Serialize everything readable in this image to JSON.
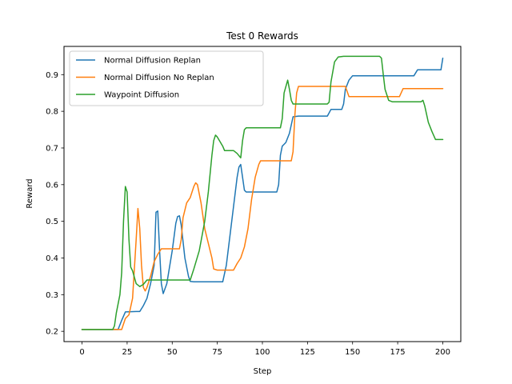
{
  "chart_data": {
    "type": "line",
    "title": "Test 0 Rewards",
    "xlabel": "Step",
    "ylabel": "Reward",
    "xlim": [
      -10,
      210
    ],
    "ylim": [
      0.172,
      0.977
    ],
    "xticks": [
      0,
      25,
      50,
      75,
      100,
      125,
      150,
      175,
      200
    ],
    "yticks": [
      0.2,
      0.3,
      0.4,
      0.5,
      0.6,
      0.7,
      0.8,
      0.9
    ],
    "grid": false,
    "legend_position": "top-left",
    "series": [
      {
        "name": "Normal Diffusion Replan",
        "color": "#1f77b4",
        "points": [
          [
            0,
            0.205
          ],
          [
            20,
            0.205
          ],
          [
            22,
            0.23
          ],
          [
            24,
            0.253
          ],
          [
            30,
            0.254
          ],
          [
            32,
            0.254
          ],
          [
            34,
            0.27
          ],
          [
            36,
            0.29
          ],
          [
            38,
            0.33
          ],
          [
            40,
            0.38
          ],
          [
            41,
            0.525
          ],
          [
            42,
            0.528
          ],
          [
            43,
            0.42
          ],
          [
            44,
            0.33
          ],
          [
            45,
            0.303
          ],
          [
            47,
            0.33
          ],
          [
            50,
            0.42
          ],
          [
            52,
            0.495
          ],
          [
            53,
            0.513
          ],
          [
            54,
            0.515
          ],
          [
            55,
            0.49
          ],
          [
            57,
            0.4
          ],
          [
            59,
            0.35
          ],
          [
            60,
            0.336
          ],
          [
            62,
            0.335
          ],
          [
            78,
            0.335
          ],
          [
            80,
            0.38
          ],
          [
            82,
            0.46
          ],
          [
            84,
            0.54
          ],
          [
            86,
            0.62
          ],
          [
            87,
            0.648
          ],
          [
            88,
            0.655
          ],
          [
            89,
            0.62
          ],
          [
            90,
            0.585
          ],
          [
            91,
            0.58
          ],
          [
            108,
            0.58
          ],
          [
            109,
            0.6
          ],
          [
            110,
            0.68
          ],
          [
            111,
            0.705
          ],
          [
            112,
            0.71
          ],
          [
            113,
            0.715
          ],
          [
            115,
            0.74
          ],
          [
            117,
            0.785
          ],
          [
            120,
            0.787
          ],
          [
            136,
            0.787
          ],
          [
            138,
            0.805
          ],
          [
            144,
            0.805
          ],
          [
            145,
            0.82
          ],
          [
            146,
            0.86
          ],
          [
            148,
            0.885
          ],
          [
            150,
            0.897
          ],
          [
            184,
            0.897
          ],
          [
            186,
            0.913
          ],
          [
            199,
            0.913
          ],
          [
            200,
            0.945
          ]
        ]
      },
      {
        "name": "Normal Diffusion No Replan",
        "color": "#ff7f0e",
        "points": [
          [
            0,
            0.205
          ],
          [
            22,
            0.205
          ],
          [
            24,
            0.235
          ],
          [
            26,
            0.245
          ],
          [
            28,
            0.29
          ],
          [
            30,
            0.45
          ],
          [
            31,
            0.535
          ],
          [
            32,
            0.48
          ],
          [
            33,
            0.38
          ],
          [
            34,
            0.32
          ],
          [
            35,
            0.31
          ],
          [
            36,
            0.32
          ],
          [
            38,
            0.35
          ],
          [
            40,
            0.39
          ],
          [
            42,
            0.41
          ],
          [
            44,
            0.425
          ],
          [
            52,
            0.425
          ],
          [
            54,
            0.425
          ],
          [
            55,
            0.45
          ],
          [
            56,
            0.51
          ],
          [
            58,
            0.55
          ],
          [
            60,
            0.565
          ],
          [
            62,
            0.595
          ],
          [
            63,
            0.605
          ],
          [
            64,
            0.6
          ],
          [
            66,
            0.55
          ],
          [
            68,
            0.48
          ],
          [
            70,
            0.44
          ],
          [
            72,
            0.4
          ],
          [
            73,
            0.37
          ],
          [
            75,
            0.367
          ],
          [
            84,
            0.367
          ],
          [
            86,
            0.385
          ],
          [
            88,
            0.4
          ],
          [
            90,
            0.43
          ],
          [
            92,
            0.48
          ],
          [
            94,
            0.56
          ],
          [
            96,
            0.62
          ],
          [
            98,
            0.655
          ],
          [
            99,
            0.665
          ],
          [
            116,
            0.665
          ],
          [
            117,
            0.69
          ],
          [
            118,
            0.79
          ],
          [
            119,
            0.85
          ],
          [
            120,
            0.868
          ],
          [
            146,
            0.868
          ],
          [
            148,
            0.84
          ],
          [
            176,
            0.84
          ],
          [
            178,
            0.862
          ],
          [
            200,
            0.862
          ]
        ]
      },
      {
        "name": "Waypoint Diffusion",
        "color": "#2ca02c",
        "points": [
          [
            0,
            0.205
          ],
          [
            17,
            0.205
          ],
          [
            18,
            0.215
          ],
          [
            19,
            0.25
          ],
          [
            21,
            0.3
          ],
          [
            22,
            0.36
          ],
          [
            23,
            0.5
          ],
          [
            24,
            0.595
          ],
          [
            25,
            0.58
          ],
          [
            26,
            0.45
          ],
          [
            27,
            0.375
          ],
          [
            28,
            0.365
          ],
          [
            30,
            0.33
          ],
          [
            32,
            0.322
          ],
          [
            34,
            0.328
          ],
          [
            36,
            0.34
          ],
          [
            60,
            0.34
          ],
          [
            62,
            0.37
          ],
          [
            65,
            0.42
          ],
          [
            68,
            0.5
          ],
          [
            70,
            0.58
          ],
          [
            72,
            0.68
          ],
          [
            73,
            0.72
          ],
          [
            74,
            0.735
          ],
          [
            75,
            0.73
          ],
          [
            78,
            0.705
          ],
          [
            79,
            0.693
          ],
          [
            84,
            0.693
          ],
          [
            86,
            0.685
          ],
          [
            88,
            0.673
          ],
          [
            89,
            0.72
          ],
          [
            90,
            0.75
          ],
          [
            91,
            0.755
          ],
          [
            110,
            0.755
          ],
          [
            111,
            0.78
          ],
          [
            112,
            0.85
          ],
          [
            114,
            0.885
          ],
          [
            115,
            0.86
          ],
          [
            116,
            0.83
          ],
          [
            117,
            0.82
          ],
          [
            136,
            0.82
          ],
          [
            137,
            0.825
          ],
          [
            138,
            0.88
          ],
          [
            140,
            0.935
          ],
          [
            142,
            0.948
          ],
          [
            145,
            0.95
          ],
          [
            165,
            0.95
          ],
          [
            166,
            0.945
          ],
          [
            167,
            0.9
          ],
          [
            168,
            0.86
          ],
          [
            170,
            0.83
          ],
          [
            172,
            0.826
          ],
          [
            188,
            0.826
          ],
          [
            189,
            0.83
          ],
          [
            190,
            0.815
          ],
          [
            192,
            0.77
          ],
          [
            194,
            0.745
          ],
          [
            196,
            0.723
          ],
          [
            200,
            0.723
          ]
        ]
      }
    ]
  }
}
